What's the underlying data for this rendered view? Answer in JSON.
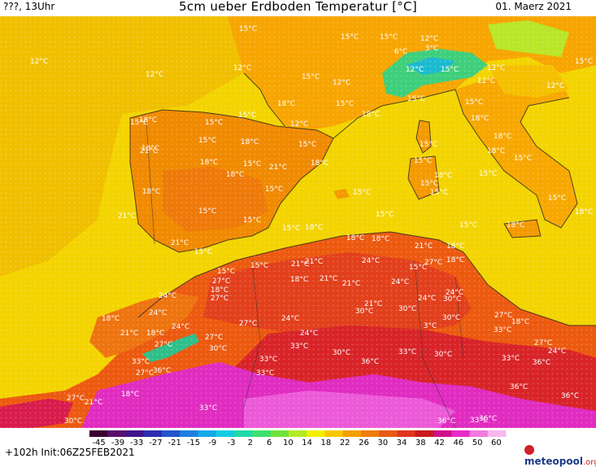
{
  "header": {
    "left_label": "???, 13Uhr",
    "title": "5cm ueber Erdboden Temperatur [°C]",
    "date": "01. Maerz 2021"
  },
  "footer": {
    "init": "+102h  Init:06Z25FEB2021",
    "logo_main": "meteopool",
    "logo_suffix": ".org"
  },
  "colorbar": {
    "ticks": [
      "-45",
      "-39",
      "-33",
      "-27",
      "-21",
      "-15",
      "-9",
      "-3",
      "2",
      "6",
      "10",
      "14",
      "18",
      "22",
      "26",
      "30",
      "34",
      "38",
      "42",
      "46",
      "50",
      "60"
    ],
    "colors": [
      "#3a0033",
      "#5a0e6b",
      "#40148a",
      "#2d2db0",
      "#2255cc",
      "#1d80e0",
      "#15a8e8",
      "#12cce0",
      "#22d9a8",
      "#3ee070",
      "#6fe23a",
      "#b3ea22",
      "#f2f000",
      "#f7c800",
      "#f5a000",
      "#f07c0a",
      "#e85a10",
      "#e03520",
      "#c91a1e",
      "#d0108a",
      "#e62cc8",
      "#f07ae0",
      "#f8b8ee"
    ]
  },
  "map_labels": [
    {
      "t": "15°C",
      "c": "white"
    },
    {
      "t": "15°C",
      "c": "white"
    },
    {
      "t": "15°C",
      "c": "white"
    },
    {
      "t": "12°C",
      "c": "white"
    },
    {
      "t": "12°C",
      "c": "white"
    },
    {
      "t": "12°C",
      "c": "white"
    },
    {
      "t": "12°C",
      "c": "white"
    },
    {
      "t": "15°C",
      "c": "white"
    },
    {
      "t": "3°C",
      "c": "white"
    },
    {
      "t": "6°C",
      "c": "white"
    },
    {
      "t": "12°C",
      "c": "white"
    },
    {
      "t": "15°C",
      "c": "white"
    },
    {
      "t": "12°C",
      "c": "white"
    },
    {
      "t": "15°C",
      "c": "white"
    },
    {
      "t": "15°C",
      "c": "white"
    },
    {
      "t": "12°C",
      "c": "white"
    },
    {
      "t": "15°C",
      "c": "white"
    },
    {
      "t": "12°C",
      "c": "white"
    },
    {
      "t": "12°C",
      "c": "white"
    },
    {
      "t": "18°C",
      "c": "white"
    },
    {
      "t": "15°C",
      "c": "white"
    },
    {
      "t": "15°C",
      "c": "white"
    },
    {
      "t": "15°C",
      "c": "white"
    },
    {
      "t": "18°C",
      "c": "white"
    },
    {
      "t": "15°C",
      "c": "white"
    },
    {
      "t": "18°C",
      "c": "white"
    },
    {
      "t": "18°C",
      "c": "white"
    },
    {
      "t": "15°C",
      "c": "white"
    },
    {
      "t": "18°C",
      "c": "white"
    },
    {
      "t": "15°C",
      "c": "white"
    },
    {
      "t": "12°C",
      "c": "white"
    },
    {
      "t": "18°C",
      "c": "white"
    },
    {
      "t": "15°C",
      "c": "white"
    },
    {
      "t": "18°C",
      "c": "white"
    },
    {
      "t": "18°C",
      "c": "white"
    },
    {
      "t": "15°C",
      "c": "white"
    },
    {
      "t": "21°C",
      "c": "white"
    },
    {
      "t": "18°C",
      "c": "white"
    },
    {
      "t": "15°C",
      "c": "white"
    },
    {
      "t": "18°C",
      "c": "white"
    },
    {
      "t": "15°C",
      "c": "white"
    },
    {
      "t": "15°C",
      "c": "white"
    },
    {
      "t": "15°C",
      "c": "white"
    },
    {
      "t": "18°C",
      "c": "white"
    },
    {
      "t": "18°C",
      "c": "white"
    },
    {
      "t": "21°C",
      "c": "white"
    },
    {
      "t": "18°C",
      "c": "white"
    },
    {
      "t": "15°C",
      "c": "white"
    },
    {
      "t": "15°C",
      "c": "white"
    },
    {
      "t": "15°C",
      "c": "white"
    },
    {
      "t": "15°C",
      "c": "white"
    },
    {
      "t": "18°C",
      "c": "white"
    },
    {
      "t": "21°C",
      "c": "white"
    },
    {
      "t": "15°C",
      "c": "white"
    },
    {
      "t": "15°C",
      "c": "white"
    },
    {
      "t": "18°C",
      "c": "white"
    },
    {
      "t": "15°C",
      "c": "white"
    },
    {
      "t": "15°C",
      "c": "white"
    },
    {
      "t": "18°C",
      "c": "white"
    },
    {
      "t": "21°C",
      "c": "white"
    },
    {
      "t": "18°C",
      "c": "white"
    },
    {
      "t": "18°C",
      "c": "white"
    },
    {
      "t": "15°C",
      "c": "white"
    },
    {
      "t": "15°C",
      "c": "white"
    },
    {
      "t": "15°C",
      "c": "white"
    },
    {
      "t": "18°C",
      "c": "white"
    },
    {
      "t": "15°C",
      "c": "white"
    },
    {
      "t": "21°C",
      "c": "white"
    },
    {
      "t": "18°C",
      "c": "white"
    },
    {
      "t": "15°C",
      "c": "white"
    },
    {
      "t": "21°C",
      "c": "white"
    },
    {
      "t": "24°C",
      "c": "white"
    },
    {
      "t": "21°C",
      "c": "white"
    },
    {
      "t": "27°C",
      "c": "white"
    },
    {
      "t": "24°C",
      "c": "white"
    },
    {
      "t": "27°C",
      "c": "white"
    },
    {
      "t": "18°C",
      "c": "white"
    },
    {
      "t": "21°C",
      "c": "white"
    },
    {
      "t": "18°C",
      "c": "white"
    },
    {
      "t": "24°C",
      "c": "white"
    },
    {
      "t": "27°C",
      "c": "white"
    },
    {
      "t": "21°C",
      "c": "white"
    },
    {
      "t": "24°C",
      "c": "white"
    },
    {
      "t": "24°C",
      "c": "white"
    },
    {
      "t": "18°C",
      "c": "white"
    },
    {
      "t": "30°C",
      "c": "white"
    },
    {
      "t": "24°C",
      "c": "white"
    },
    {
      "t": "21°C",
      "c": "white"
    },
    {
      "t": "24°C",
      "c": "white"
    },
    {
      "t": "30°C",
      "c": "white"
    },
    {
      "t": "27°C",
      "c": "white"
    },
    {
      "t": "18°C",
      "c": "white"
    },
    {
      "t": "30°C",
      "c": "white"
    },
    {
      "t": "21°C",
      "c": "white"
    },
    {
      "t": "18°C",
      "c": "white"
    },
    {
      "t": "24°C",
      "c": "white"
    },
    {
      "t": "27°C",
      "c": "white"
    },
    {
      "t": "24°C",
      "c": "white"
    },
    {
      "t": "27°C",
      "c": "white"
    },
    {
      "t": "27°C",
      "c": "white"
    },
    {
      "t": "30°C",
      "c": "white"
    },
    {
      "t": "33°C",
      "c": "white"
    },
    {
      "t": "30°C",
      "c": "white"
    },
    {
      "t": "3°C",
      "c": "white"
    },
    {
      "t": "33°C",
      "c": "white"
    },
    {
      "t": "30°C",
      "c": "white"
    },
    {
      "t": "33°C",
      "c": "white"
    },
    {
      "t": "33°C",
      "c": "white"
    },
    {
      "t": "36°C",
      "c": "white"
    },
    {
      "t": "27°C",
      "c": "white"
    },
    {
      "t": "24°C",
      "c": "white"
    },
    {
      "t": "33°C",
      "c": "white"
    },
    {
      "t": "36°C",
      "c": "white"
    },
    {
      "t": "33°C",
      "c": "white"
    },
    {
      "t": "30°C",
      "c": "white"
    },
    {
      "t": "36°C",
      "c": "white"
    },
    {
      "t": "33°C",
      "c": "white"
    },
    {
      "t": "27°C",
      "c": "white"
    },
    {
      "t": "36°C",
      "c": "white"
    },
    {
      "t": "18°C",
      "c": "white"
    },
    {
      "t": "33°C",
      "c": "white"
    },
    {
      "t": "36°C",
      "c": "white"
    },
    {
      "t": "36°C",
      "c": "white"
    },
    {
      "t": "27°C",
      "c": "white"
    },
    {
      "t": "21°C",
      "c": "white"
    },
    {
      "t": "30°C",
      "c": "white"
    },
    {
      "t": "36°C",
      "c": "white"
    },
    {
      "t": "33°C",
      "c": "white"
    }
  ]
}
